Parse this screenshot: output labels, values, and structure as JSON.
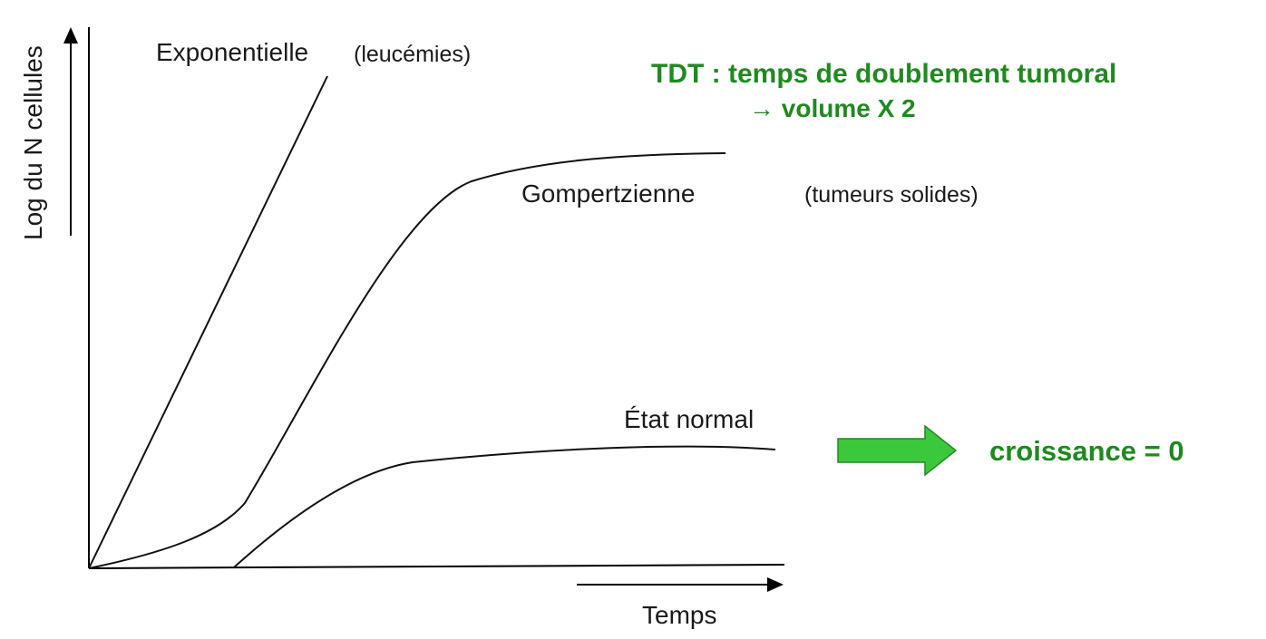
{
  "chart_data": {
    "type": "line",
    "xlabel": "Temps",
    "ylabel": "Log du N cellules",
    "grid": false,
    "series": [
      {
        "name": "Exponentielle",
        "note": "(leucémies)"
      },
      {
        "name": "Gompertzienne",
        "note": "(tumeurs solides)"
      },
      {
        "name": "État normal"
      }
    ]
  },
  "annotations": {
    "tdt_line1": "TDT : temps de doublement tumoral",
    "tdt_line2": "→ volume X 2",
    "croissance": "croissance = 0"
  },
  "colors": {
    "axis": "#000000",
    "curve": "#111111",
    "annotation_text": "#1f8a1f",
    "arrow_fill": "#3cc83c",
    "arrow_stroke": "#1f8a1f"
  }
}
